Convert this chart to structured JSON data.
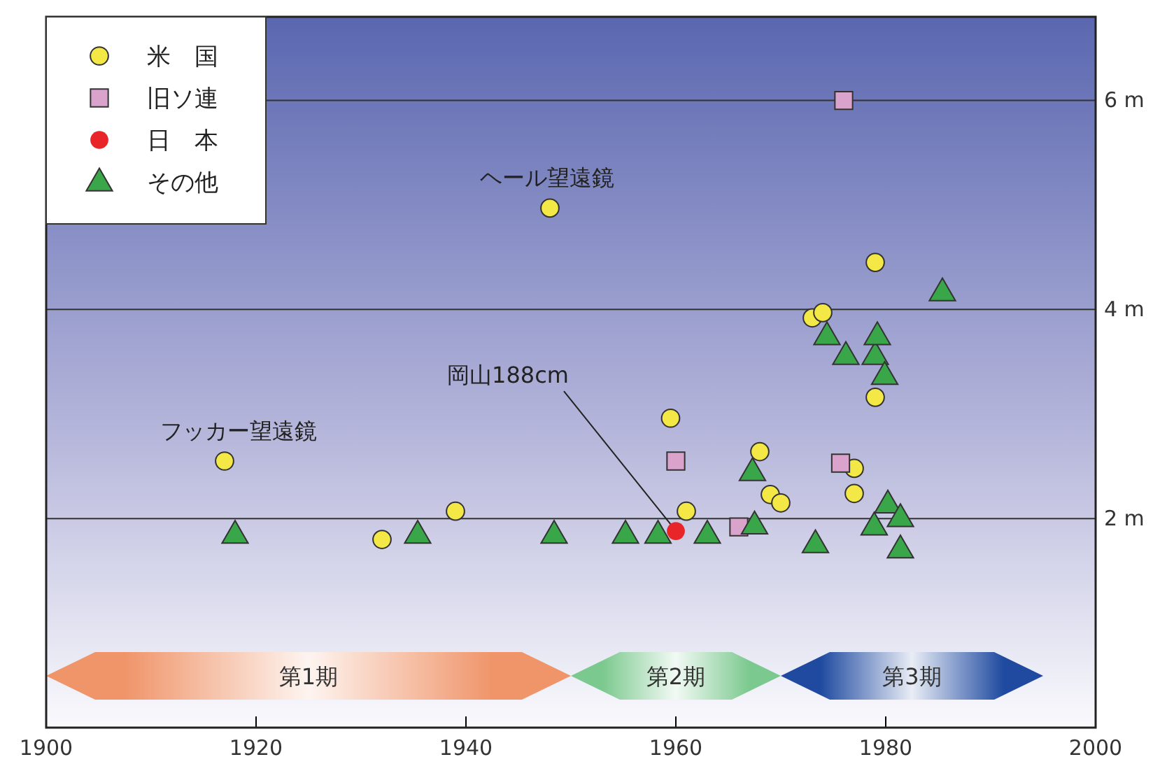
{
  "chart_data": {
    "type": "scatter",
    "xlim": [
      1900,
      2000
    ],
    "xticks": [
      1900,
      1920,
      1940,
      1960,
      1980,
      2000
    ],
    "ylim": [
      0,
      6.8
    ],
    "yticks": [
      {
        "value": 2,
        "label": "2 m"
      },
      {
        "value": 4,
        "label": "4 m"
      },
      {
        "value": 6,
        "label": "6 m"
      }
    ],
    "grid": "y",
    "legend": "top left",
    "series": [
      {
        "name": "米　国",
        "color": "#f3e846",
        "marker": "circle",
        "x": [
          1917,
          1932,
          1939,
          1948,
          1959.5,
          1961,
          1968,
          1969,
          1970,
          1973,
          1974,
          1977,
          1977,
          1979,
          1979
        ],
        "values": [
          2.55,
          1.8,
          2.07,
          4.97,
          2.96,
          2.07,
          2.64,
          2.23,
          2.15,
          3.92,
          3.97,
          2.48,
          2.24,
          4.45,
          3.16
        ]
      },
      {
        "name": "旧ソ連",
        "color": "#d9a3cc",
        "marker": "square",
        "x": [
          1976,
          1960,
          1966,
          1975.7
        ],
        "values": [
          6.0,
          2.55,
          1.92,
          2.53
        ]
      },
      {
        "name": "日　本",
        "color": "#e8262a",
        "marker": "circle",
        "x": [
          1960
        ],
        "values": [
          1.88
        ]
      },
      {
        "name": "その他",
        "color": "#3aa64a",
        "marker": "triangle",
        "x": [
          1918,
          1935.4,
          1948.4,
          1955.2,
          1958.3,
          1963,
          1967.5,
          1967.3,
          1973.3,
          1974.4,
          1976.2,
          1979,
          1979.2,
          1979.9,
          1985.4,
          1980.2,
          1981.4,
          1978.9,
          1981.4
        ],
        "values": [
          1.85,
          1.85,
          1.85,
          1.85,
          1.85,
          1.85,
          1.94,
          2.45,
          1.76,
          3.75,
          3.56,
          3.56,
          3.75,
          3.37,
          4.17,
          2.14,
          2.01,
          1.93,
          1.71
        ]
      }
    ],
    "annotations": [
      {
        "text": "ヘール望遠鏡",
        "x": 1948,
        "y": 4.97
      },
      {
        "text": "フッカー望遠鏡",
        "x": 1917,
        "y": 2.55
      },
      {
        "text": "岡山188cm",
        "x": 1960,
        "y": 1.88
      }
    ],
    "bands": [
      {
        "axis": "x",
        "from": 1900,
        "to": 1950,
        "label": "第1期",
        "color": "#f0956a"
      },
      {
        "axis": "x",
        "from": 1950,
        "to": 1970,
        "label": "第2期",
        "color": "#7cc98f"
      },
      {
        "axis": "x",
        "from": 1970,
        "to": 1995,
        "label": "第3期",
        "color": "#1f4aa0"
      }
    ]
  }
}
